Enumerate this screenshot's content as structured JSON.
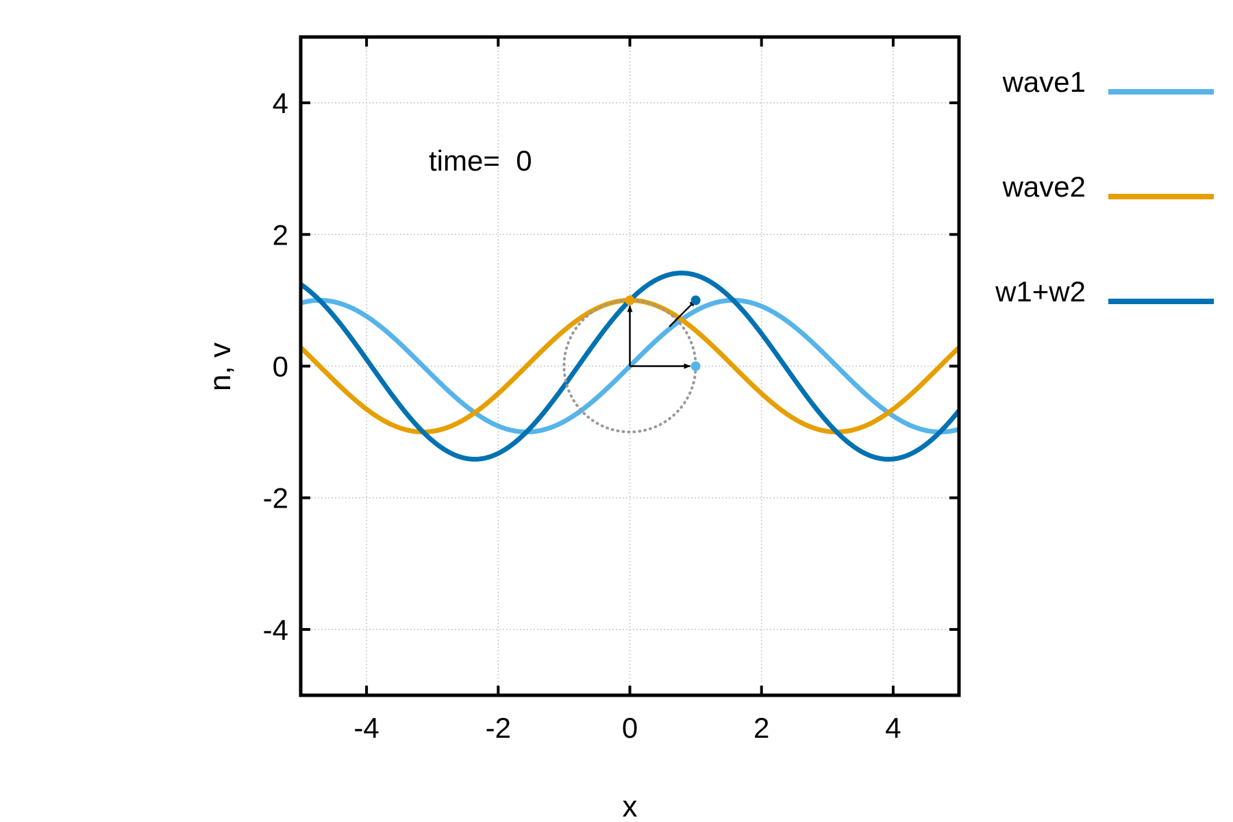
{
  "chart_data": {
    "type": "line",
    "xlabel": "x",
    "ylabel": "n, v",
    "xlim": [
      -5,
      5
    ],
    "ylim": [
      -5,
      5
    ],
    "xticks": [
      "-4",
      "-2",
      "0",
      "2",
      "4"
    ],
    "yticks": [
      "-4",
      "-2",
      "0",
      "2",
      "4"
    ],
    "grid": true,
    "legend_position": "outside right",
    "annotation": "time=  0",
    "series": [
      {
        "name": "wave1",
        "function": "sin(x)",
        "color": "#56b4e9"
      },
      {
        "name": "wave2",
        "function": "cos(x)",
        "color": "#e69f00"
      },
      {
        "name": "w1+w2",
        "function": "sin(x)+cos(x)",
        "color": "#0072b2"
      }
    ],
    "phasor": {
      "circle": {
        "center": [
          0,
          0
        ],
        "radius": 1,
        "style": "dotted",
        "color": "#999999"
      },
      "vectors": [
        {
          "from": [
            0,
            0
          ],
          "to": [
            1,
            0
          ],
          "tip_color": "#56b4e9"
        },
        {
          "from": [
            0,
            0
          ],
          "to": [
            0,
            1
          ],
          "tip_color": "#e69f00"
        },
        {
          "from": [
            0.6,
            0.6
          ],
          "to": [
            1,
            1
          ],
          "tip_color": "#0072b2"
        }
      ]
    }
  }
}
